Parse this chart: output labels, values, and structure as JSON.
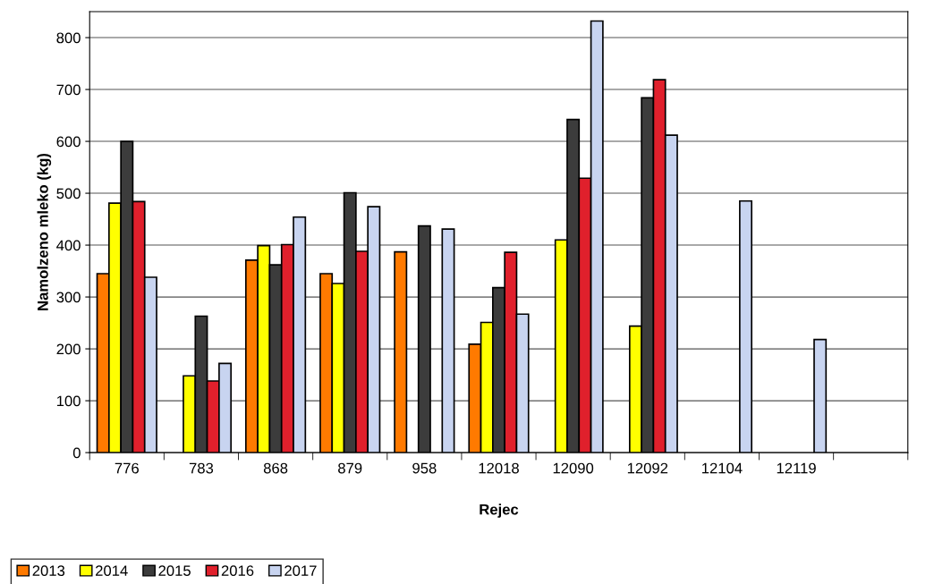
{
  "chart_data": {
    "type": "bar",
    "xlabel": "Rejec",
    "ylabel": "Namolzeno mleko (kg)",
    "categories": [
      "776",
      "783",
      "868",
      "879",
      "958",
      "12018",
      "12090",
      "12092",
      "12104",
      "12119",
      null
    ],
    "series": [
      {
        "name": "2013",
        "color": "#ff7a00",
        "values": [
          345,
          null,
          371,
          345,
          387,
          209,
          null,
          null,
          null,
          null,
          null
        ]
      },
      {
        "name": "2014",
        "color": "#ffff00",
        "values": [
          481,
          148,
          399,
          326,
          null,
          251,
          410,
          244,
          null,
          null,
          null
        ]
      },
      {
        "name": "2015",
        "color": "#3c3c3c",
        "values": [
          600,
          263,
          362,
          501,
          437,
          318,
          642,
          684,
          null,
          null,
          null
        ]
      },
      {
        "name": "2016",
        "color": "#e0202c",
        "values": [
          484,
          138,
          401,
          388,
          null,
          386,
          529,
          719,
          null,
          null,
          null
        ]
      },
      {
        "name": "2017",
        "color": "#c8d4f0",
        "values": [
          338,
          172,
          454,
          474,
          431,
          267,
          832,
          612,
          485,
          218,
          null
        ]
      }
    ],
    "ylim": [
      0,
      850
    ],
    "yticks": [
      0,
      100,
      200,
      300,
      400,
      500,
      600,
      700,
      800
    ],
    "grid": "y",
    "legend": "bottom left"
  }
}
